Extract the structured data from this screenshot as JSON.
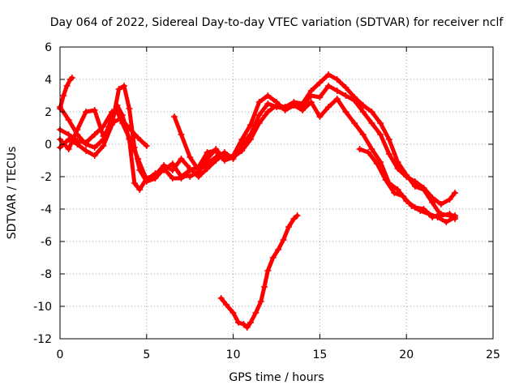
{
  "chart_data": {
    "type": "line",
    "title": "Day 064 of 2022, Sidereal Day-to-day VTEC variation (SDTVAR) for receiver nclf",
    "xlabel": "GPS time / hours",
    "ylabel": "SDTVAR / TECUs",
    "xlim": [
      0,
      25
    ],
    "ylim": [
      -12,
      6
    ],
    "xticks": [
      0,
      5,
      10,
      15,
      20,
      25
    ],
    "yticks": [
      -12,
      -10,
      -8,
      -6,
      -4,
      -2,
      0,
      2,
      4,
      6
    ],
    "xtick_labels": [
      "0",
      "5",
      "10",
      "15",
      "20",
      "25"
    ],
    "ytick_labels": [
      "-12",
      "-10",
      "-8",
      "-6",
      "-4",
      "-2",
      "0",
      "2",
      "4",
      "6"
    ],
    "grid": true,
    "color": "#ff0000",
    "series": [
      {
        "name": "trace-1",
        "x": [
          0.0,
          0.2,
          0.4,
          0.6,
          0.7
        ],
        "y": [
          2.2,
          3.0,
          3.6,
          4.0,
          4.1
        ]
      },
      {
        "name": "trace-2",
        "x": [
          0.0,
          0.5,
          1.0,
          1.5,
          2.0,
          2.5,
          3.0,
          3.3,
          3.6,
          4.0,
          4.3,
          4.6,
          5.0,
          5.5,
          6.0,
          6.5,
          7.0,
          7.5,
          8.0,
          8.5,
          9.0,
          9.5,
          10.0,
          10.5,
          11.0,
          11.5,
          12.0,
          12.5,
          13.0,
          13.5,
          14.0,
          14.5,
          15.0,
          15.5,
          16.0,
          16.5,
          17.0,
          17.5,
          18.0,
          18.5,
          19.0,
          19.5,
          20.0,
          20.5,
          21.0,
          21.5,
          22.0,
          22.5,
          22.8
        ],
        "y": [
          2.3,
          1.5,
          0.6,
          0.0,
          -0.2,
          0.3,
          1.6,
          2.4,
          1.8,
          0.3,
          -2.4,
          -2.8,
          -2.1,
          -1.9,
          -1.3,
          -1.6,
          -0.9,
          -1.5,
          -2.0,
          -1.5,
          -1.0,
          -0.6,
          -0.8,
          0.0,
          0.6,
          1.8,
          2.5,
          2.3,
          2.2,
          2.4,
          2.4,
          3.0,
          2.9,
          3.6,
          3.3,
          3.0,
          2.7,
          2.0,
          1.3,
          0.6,
          -0.6,
          -1.5,
          -2.0,
          -2.3,
          -2.7,
          -3.3,
          -3.7,
          -3.4,
          -3.0
        ]
      },
      {
        "name": "trace-3",
        "x": [
          0.0,
          0.5,
          1.0,
          1.5,
          2.0,
          2.5,
          3.0,
          3.3,
          3.6,
          4.0,
          4.5,
          5.0,
          5.5,
          6.0,
          6.5,
          7.0,
          7.5,
          8.0,
          8.5,
          9.0,
          9.5,
          10.0,
          10.5,
          11.0,
          11.5,
          12.0,
          12.5,
          13.0,
          13.5,
          14.0,
          14.5,
          15.0,
          15.5,
          16.0,
          16.5,
          17.0,
          17.5,
          18.0,
          18.5,
          19.0,
          19.5,
          20.0,
          20.5,
          21.0,
          21.5,
          22.0,
          22.5,
          22.8
        ],
        "y": [
          0.9,
          0.6,
          0.2,
          0.1,
          0.6,
          1.1,
          2.0,
          2.0,
          1.3,
          0.4,
          -0.9,
          -2.2,
          -1.8,
          -1.6,
          -1.2,
          -2.0,
          -1.6,
          -1.4,
          -0.5,
          -0.4,
          -1.0,
          -0.8,
          -0.4,
          0.3,
          1.3,
          2.0,
          2.4,
          2.3,
          2.6,
          2.5,
          3.3,
          3.8,
          4.3,
          4.0,
          3.5,
          2.9,
          2.4,
          2.0,
          1.3,
          0.3,
          -1.1,
          -1.9,
          -2.6,
          -2.8,
          -3.6,
          -4.4,
          -4.3,
          -4.6
        ]
      },
      {
        "name": "trace-4",
        "x": [
          0.0,
          0.5,
          1.0,
          1.5,
          2.0,
          2.5,
          3.0,
          3.4,
          3.7,
          4.0,
          4.3,
          4.6,
          5.0,
          5.5,
          6.0,
          6.5,
          7.0,
          7.3,
          7.5,
          8.0,
          8.5,
          9.0,
          9.5,
          10.0,
          10.5,
          11.0,
          11.5,
          12.0,
          12.5,
          13.0,
          13.5,
          14.0,
          14.5,
          15.0,
          15.5,
          16.0,
          16.5,
          17.0,
          17.5,
          18.0,
          18.5,
          19.0,
          19.5,
          20.0,
          20.5,
          21.0,
          21.5,
          22.0,
          22.5,
          22.8
        ],
        "y": [
          -0.2,
          0.3,
          0.0,
          -0.4,
          -0.7,
          -0.1,
          1.2,
          3.4,
          3.6,
          2.2,
          -0.2,
          -1.6,
          -2.3,
          -2.1,
          -1.5,
          -2.1,
          -2.1,
          -1.9,
          -2.0,
          -1.7,
          -0.9,
          -0.3,
          -0.9,
          -0.7,
          0.3,
          1.2,
          2.6,
          3.0,
          2.6,
          2.1,
          2.4,
          2.1,
          2.6,
          1.7,
          2.3,
          2.8,
          2.0,
          1.3,
          0.6,
          -0.3,
          -1.1,
          -2.4,
          -2.8,
          -3.5,
          -3.9,
          -4.0,
          -4.5,
          -4.3,
          -4.4,
          -4.4
        ]
      },
      {
        "name": "trace-5",
        "x": [
          0.0,
          0.5,
          1.0,
          1.5,
          2.0,
          2.5,
          3.0,
          3.5,
          4.0,
          4.5,
          5.0
        ],
        "y": [
          0.3,
          -0.3,
          0.9,
          2.0,
          2.1,
          0.5,
          1.3,
          1.6,
          1.0,
          0.4,
          -0.1
        ]
      },
      {
        "name": "trace-6",
        "x": [
          6.6,
          7.0,
          7.5,
          8.0,
          8.5,
          9.0,
          9.5,
          10.0
        ],
        "y": [
          1.7,
          0.6,
          -0.8,
          -1.6,
          -1.2,
          -0.8,
          -0.5,
          -0.9
        ]
      },
      {
        "name": "trace-7",
        "x": [
          17.3,
          17.8,
          18.3,
          18.8,
          19.3,
          19.8,
          20.3,
          20.8,
          21.3,
          21.8,
          22.3,
          22.8
        ],
        "y": [
          -0.3,
          -0.5,
          -1.2,
          -2.2,
          -3.0,
          -3.2,
          -3.8,
          -4.1,
          -4.3,
          -4.5,
          -4.8,
          -4.5
        ]
      },
      {
        "name": "trace-8",
        "x": [
          9.3,
          9.6,
          10.0,
          10.3,
          10.6,
          10.8,
          11.0,
          11.3,
          11.6,
          11.8,
          12.0,
          12.3,
          12.6,
          12.9,
          13.2,
          13.5,
          13.7
        ],
        "y": [
          -9.5,
          -9.9,
          -10.4,
          -11.0,
          -11.1,
          -11.3,
          -11.0,
          -10.4,
          -9.7,
          -8.8,
          -7.8,
          -7.0,
          -6.5,
          -5.9,
          -5.1,
          -4.6,
          -4.4
        ]
      }
    ]
  }
}
